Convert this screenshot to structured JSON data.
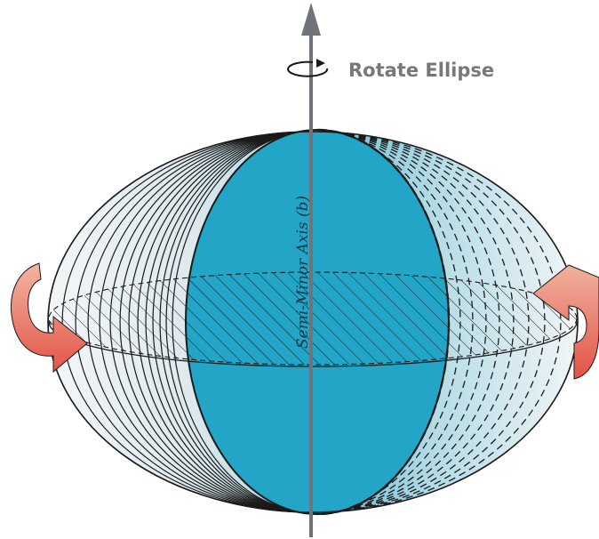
{
  "diagram": {
    "rotate_label": "Rotate Ellipse",
    "axis_label": "Semi-Minor Axis (b)",
    "colors": {
      "ellipse_fill": "#22a5c6",
      "shell_light": "#eef3f5",
      "shell_blue": "#9fcfdd",
      "axis": "#707377",
      "arrow": "#e5574c",
      "arrow_light": "#f0a993",
      "outline": "#1a1a1a"
    },
    "icons": [
      "rotation-loop-icon",
      "left-rotation-arrow-icon",
      "right-rotation-arrow-icon",
      "axis-arrow-icon"
    ]
  }
}
